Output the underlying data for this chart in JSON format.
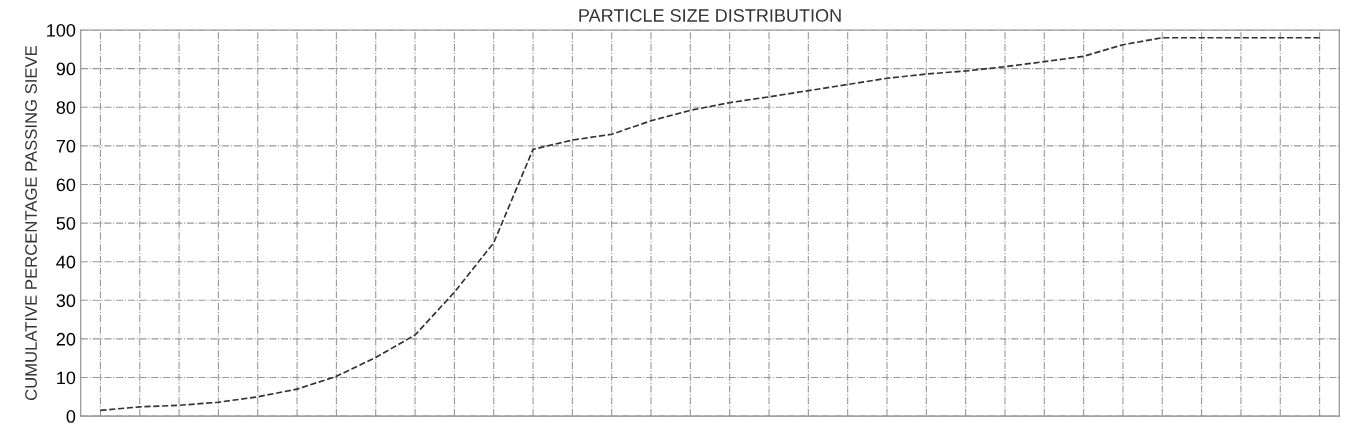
{
  "chart_data": {
    "type": "line",
    "title": "PARTICLE SIZE DISTRIBUTION",
    "ylabel": "CUMULATIVE PERCENTAGE PASSING SIEVE",
    "categories": [
      null,
      null,
      null,
      null,
      null,
      null,
      null,
      null,
      null,
      null,
      null,
      null,
      null,
      null,
      null,
      null,
      null,
      null,
      null,
      null,
      null,
      null,
      null,
      null,
      null,
      null,
      null,
      null,
      null,
      null,
      null,
      null
    ],
    "series": [
      {
        "color": "#333333",
        "values": [
          1.5,
          2.4,
          2.8,
          3.6,
          5.0,
          7.0,
          10.3,
          15.2,
          21,
          32.1,
          44.9,
          69.1,
          71.5,
          73,
          76.5,
          79.2,
          81.2,
          82.7,
          84.3,
          85.9,
          87.5,
          88.6,
          89.4,
          90.5,
          91.8,
          93.2,
          96.2,
          98,
          98,
          98,
          98,
          98
        ]
      }
    ],
    "ylim": [
      0,
      100
    ],
    "yticks": [
      0,
      10,
      20,
      30,
      40,
      50,
      60,
      70,
      80,
      90,
      100
    ],
    "grid": true,
    "line_style": "dashed",
    "marker": "none",
    "tick_labels": "y"
  }
}
